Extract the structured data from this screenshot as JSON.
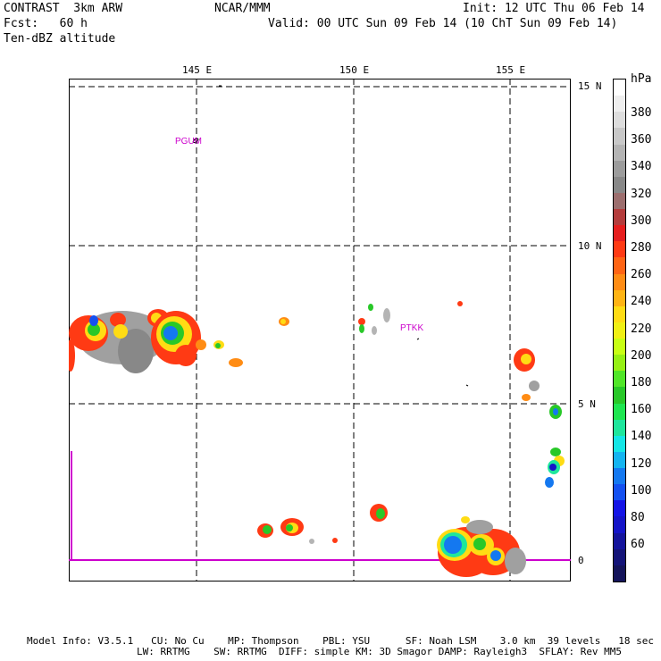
{
  "header": {
    "model": "CONTRAST  3km ARW",
    "center": "NCAR/MMM",
    "init": "Init: 12 UTC Thu 06 Feb 14",
    "fcst": "Fcst:   60 h",
    "valid": "Valid: 00 UTC Sun 09 Feb 14 (10 ChT Sun 09 Feb 14)",
    "field": "Ten-dBZ altitude"
  },
  "map": {
    "lon_labels": [
      "145 E",
      "150 E",
      "155 E"
    ],
    "lat_labels": [
      "15 N",
      "10 N",
      "5 N",
      "0"
    ],
    "stations": [
      "PGUM",
      "PTKK"
    ],
    "colors": {
      "frame": "#000000",
      "grid": "#000000",
      "boundary": "#cc00cc",
      "station": "#cc00cc"
    }
  },
  "colorbar": {
    "unit": "hPa",
    "labels": [
      "380",
      "360",
      "340",
      "320",
      "300",
      "280",
      "260",
      "240",
      "220",
      "200",
      "180",
      "160",
      "140",
      "120",
      "100",
      "80",
      "60"
    ],
    "colors": [
      "#ffffff",
      "#eeeeee",
      "#dddddd",
      "#c8c8c8",
      "#b4b4b4",
      "#9c9c9c",
      "#888888",
      "#9c6e6e",
      "#b43c3c",
      "#e61e1e",
      "#ff3a14",
      "#ff6414",
      "#ff8c14",
      "#ffb414",
      "#ffdc14",
      "#f0f014",
      "#c8ff14",
      "#96f014",
      "#50e628",
      "#28c828",
      "#1ee650",
      "#1ee69c",
      "#14e6e6",
      "#14b4f0",
      "#1478f0",
      "#1450f0",
      "#1414e6",
      "#1414c8",
      "#14149c",
      "#141478",
      "#14145a"
    ]
  },
  "footer": {
    "line1": "Model Info: V3.5.1   CU: No Cu    MP: Thompson    PBL: YSU      SF: Noah LSM    3.0 km  39 levels   18 sec",
    "line2": "LW: RRTMG    SW: RRTMG  DIFF: simple KM: 3D Smagor DAMP: Rayleigh3  SFLAY: Rev MM5"
  }
}
